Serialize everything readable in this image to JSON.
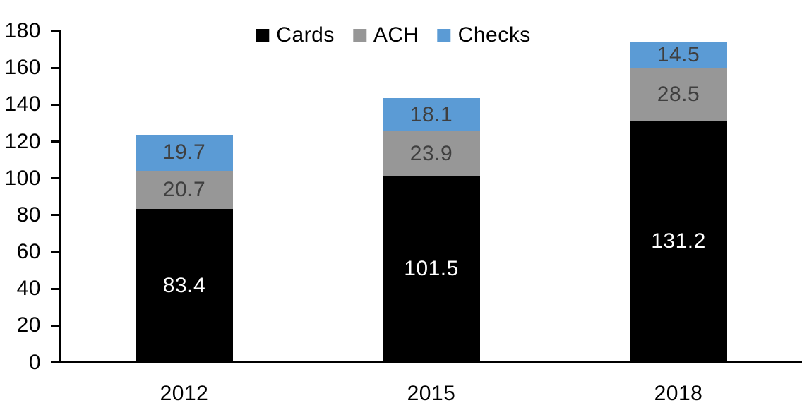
{
  "chart_data": {
    "type": "bar",
    "stacked": true,
    "title": "",
    "xlabel": "",
    "ylabel": "",
    "categories": [
      "2012",
      "2015",
      "2018"
    ],
    "series": [
      {
        "name": "Cards",
        "color": "#000000",
        "label_color": "#ffffff",
        "values": [
          83.4,
          101.5,
          131.2
        ]
      },
      {
        "name": "ACH",
        "color": "#979797",
        "label_color": "#3f3f3f",
        "values": [
          20.7,
          23.9,
          28.5
        ]
      },
      {
        "name": "Checks",
        "color": "#5b9bd5",
        "label_color": "#3f3f3f",
        "values": [
          19.7,
          18.1,
          14.5
        ]
      }
    ],
    "totals": [
      123.8,
      143.5,
      174.2
    ],
    "ylim": [
      0,
      180
    ],
    "yticks": [
      0,
      20,
      40,
      60,
      80,
      100,
      120,
      140,
      160,
      180
    ],
    "grid": false,
    "legend_position": "top-center",
    "axis_color": "#000000",
    "background_color": "#ffffff"
  }
}
